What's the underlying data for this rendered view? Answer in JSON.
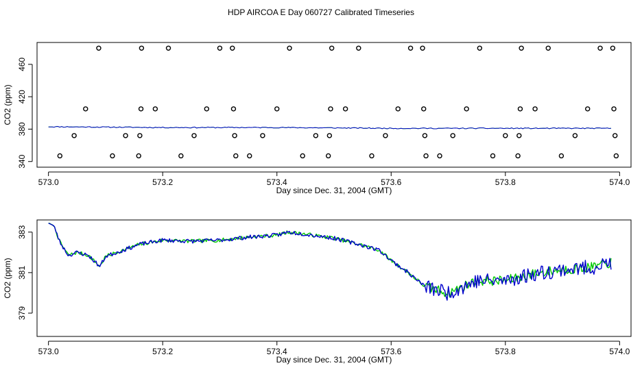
{
  "title": "HDP AIRCOA E  Day 060727  Calibrated Timeseries",
  "colors": {
    "green": "#00c800",
    "blue": "#0000cc",
    "points": "#000000"
  },
  "chart_data": [
    {
      "type": "scatter",
      "xlabel": "Day since Dec. 31, 2004 (GMT)",
      "ylabel": "CO2 (ppm)",
      "xlim": [
        572.98,
        574.02
      ],
      "ylim": [
        333,
        487
      ],
      "x_ticks": [
        "573.0",
        "573.2",
        "573.4",
        "573.6",
        "573.8",
        "574.0"
      ],
      "y_ticks": [
        "340",
        "380",
        "420",
        "460"
      ],
      "calibration_points": [
        {
          "x": 573.02,
          "y": 347
        },
        {
          "x": 573.045,
          "y": 372
        },
        {
          "x": 573.065,
          "y": 405
        },
        {
          "x": 573.088,
          "y": 480
        },
        {
          "x": 573.112,
          "y": 347
        },
        {
          "x": 573.135,
          "y": 372
        },
        {
          "x": 573.158,
          "y": 347
        },
        {
          "x": 573.16,
          "y": 372
        },
        {
          "x": 573.162,
          "y": 405
        },
        {
          "x": 573.163,
          "y": 480
        },
        {
          "x": 573.187,
          "y": 405
        },
        {
          "x": 573.21,
          "y": 480
        },
        {
          "x": 573.232,
          "y": 347
        },
        {
          "x": 573.255,
          "y": 372
        },
        {
          "x": 573.277,
          "y": 405
        },
        {
          "x": 573.3,
          "y": 480
        },
        {
          "x": 573.322,
          "y": 480
        },
        {
          "x": 573.324,
          "y": 405
        },
        {
          "x": 573.326,
          "y": 372
        },
        {
          "x": 573.328,
          "y": 347
        },
        {
          "x": 573.352,
          "y": 347
        },
        {
          "x": 573.375,
          "y": 372
        },
        {
          "x": 573.4,
          "y": 405
        },
        {
          "x": 573.422,
          "y": 480
        },
        {
          "x": 573.445,
          "y": 347
        },
        {
          "x": 573.468,
          "y": 372
        },
        {
          "x": 573.49,
          "y": 347
        },
        {
          "x": 573.492,
          "y": 372
        },
        {
          "x": 573.494,
          "y": 405
        },
        {
          "x": 573.496,
          "y": 480
        },
        {
          "x": 573.52,
          "y": 405
        },
        {
          "x": 573.543,
          "y": 480
        },
        {
          "x": 573.566,
          "y": 347
        },
        {
          "x": 573.59,
          "y": 372
        },
        {
          "x": 573.612,
          "y": 405
        },
        {
          "x": 573.634,
          "y": 480
        },
        {
          "x": 573.655,
          "y": 480
        },
        {
          "x": 573.657,
          "y": 405
        },
        {
          "x": 573.659,
          "y": 372
        },
        {
          "x": 573.661,
          "y": 347
        },
        {
          "x": 573.685,
          "y": 347
        },
        {
          "x": 573.708,
          "y": 372
        },
        {
          "x": 573.732,
          "y": 405
        },
        {
          "x": 573.755,
          "y": 480
        },
        {
          "x": 573.778,
          "y": 347
        },
        {
          "x": 573.8,
          "y": 372
        },
        {
          "x": 573.822,
          "y": 347
        },
        {
          "x": 573.824,
          "y": 372
        },
        {
          "x": 573.826,
          "y": 405
        },
        {
          "x": 573.828,
          "y": 480
        },
        {
          "x": 573.852,
          "y": 405
        },
        {
          "x": 573.875,
          "y": 480
        },
        {
          "x": 573.898,
          "y": 347
        },
        {
          "x": 573.922,
          "y": 372
        },
        {
          "x": 573.944,
          "y": 405
        },
        {
          "x": 573.966,
          "y": 480
        },
        {
          "x": 573.988,
          "y": 480
        },
        {
          "x": 573.99,
          "y": 405
        },
        {
          "x": 573.992,
          "y": 372
        },
        {
          "x": 573.994,
          "y": 347
        }
      ],
      "series_level": [
        {
          "x": 573.0,
          "y": 383
        },
        {
          "x": 573.2,
          "y": 382
        },
        {
          "x": 573.4,
          "y": 382
        },
        {
          "x": 573.6,
          "y": 381
        },
        {
          "x": 573.8,
          "y": 381
        },
        {
          "x": 573.985,
          "y": 381
        }
      ]
    },
    {
      "type": "line",
      "xlabel": "Day since Dec. 31, 2004 (GMT)",
      "ylabel": "CO2 (ppm)",
      "xlim": [
        572.98,
        574.02
      ],
      "ylim": [
        377.85,
        383.6
      ],
      "x_ticks": [
        "573.0",
        "573.2",
        "573.4",
        "573.6",
        "573.8",
        "574.0"
      ],
      "y_ticks": [
        "379",
        "381",
        "383"
      ],
      "anchors": [
        {
          "x": 573.0,
          "y": 383.45
        },
        {
          "x": 573.01,
          "y": 383.3
        },
        {
          "x": 573.02,
          "y": 382.5
        },
        {
          "x": 573.035,
          "y": 381.85
        },
        {
          "x": 573.05,
          "y": 382.0
        },
        {
          "x": 573.07,
          "y": 381.85
        },
        {
          "x": 573.09,
          "y": 381.3
        },
        {
          "x": 573.1,
          "y": 381.8
        },
        {
          "x": 573.13,
          "y": 382.1
        },
        {
          "x": 573.16,
          "y": 382.4
        },
        {
          "x": 573.2,
          "y": 382.6
        },
        {
          "x": 573.25,
          "y": 382.55
        },
        {
          "x": 573.3,
          "y": 382.6
        },
        {
          "x": 573.35,
          "y": 382.75
        },
        {
          "x": 573.4,
          "y": 382.85
        },
        {
          "x": 573.42,
          "y": 383.0
        },
        {
          "x": 573.45,
          "y": 382.9
        },
        {
          "x": 573.5,
          "y": 382.7
        },
        {
          "x": 573.55,
          "y": 382.35
        },
        {
          "x": 573.58,
          "y": 382.1
        },
        {
          "x": 573.6,
          "y": 381.6
        },
        {
          "x": 573.63,
          "y": 381.0
        },
        {
          "x": 573.66,
          "y": 380.3
        },
        {
          "x": 573.7,
          "y": 380.0
        },
        {
          "x": 573.75,
          "y": 380.6
        },
        {
          "x": 573.8,
          "y": 380.6
        },
        {
          "x": 573.85,
          "y": 380.95
        },
        {
          "x": 573.9,
          "y": 381.15
        },
        {
          "x": 573.95,
          "y": 381.25
        },
        {
          "x": 573.985,
          "y": 381.5
        }
      ],
      "series": [
        {
          "color": "green",
          "noise": [
            0.09,
            0.25
          ],
          "seed": 7
        },
        {
          "color": "blue",
          "noise": [
            0.1,
            0.38
          ],
          "seed": 23
        }
      ]
    }
  ]
}
